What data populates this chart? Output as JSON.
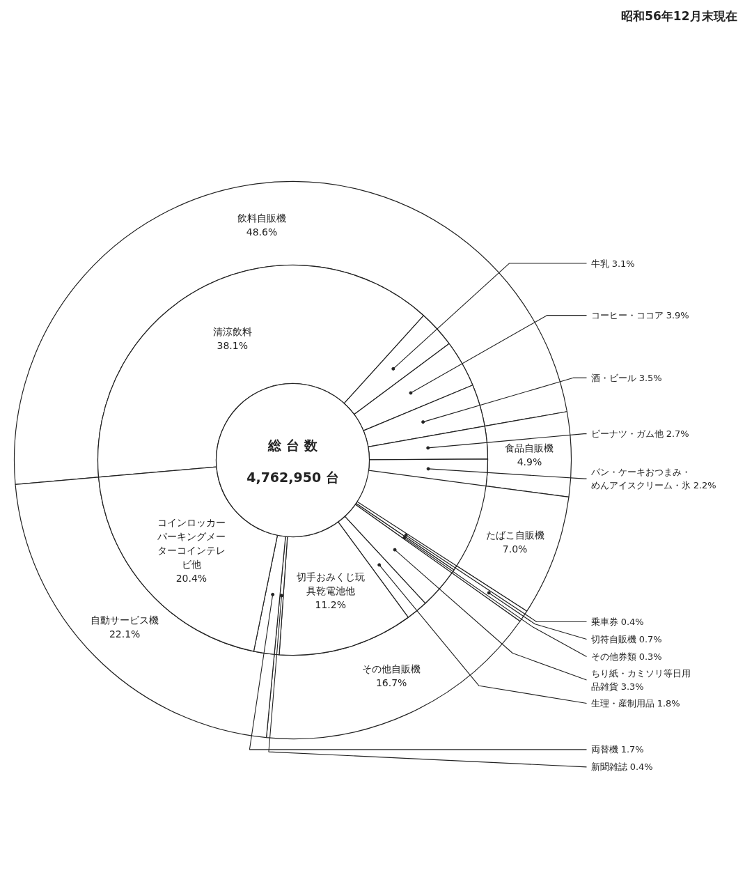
{
  "chart_data": [
    {
      "type": "donut",
      "subtitle": "昭和56年12月末現在",
      "categories": [
        "飲料自販機",
        "食品自販機",
        "たばこ自販機",
        "切符自販機",
        "その他自販機",
        "自動サービス機"
      ],
      "values": [
        48.6,
        4.9,
        7.0,
        0.7,
        16.7,
        22.1
      ],
      "value_labels": [
        "48.6%",
        "4.9%",
        "7.0%",
        "0.7%",
        "16.7%",
        "22.1%"
      ]
    },
    {
      "type": "donut",
      "annotations": [
        "総 台 数",
        "4,762,950 台"
      ],
      "categories": [
        "清涼飲料",
        "牛乳",
        "コーヒー・ココア",
        "酒・ビール",
        "ピーナツ・ガム他",
        "パン・ケーキおつまみ・めんアイスクリーム・氷",
        null,
        "乗車券",
        "その他券類",
        "ちり紙・カミソリ等日用品雑貨",
        "生理・産制用品",
        "切手おみくじ玩具乾電池他",
        "新聞雑誌",
        "両替機",
        "コインロッカーパーキングメーターコインテレビ他"
      ],
      "values": [
        38.1,
        3.1,
        3.9,
        3.5,
        2.7,
        2.2,
        null,
        0.4,
        0.3,
        3.3,
        1.8,
        11.2,
        0.4,
        1.7,
        20.4
      ],
      "value_labels": [
        "38.1%",
        "3.1%",
        "3.9%",
        "3.5%",
        "2.7%",
        "2.2%",
        null,
        "0.4%",
        "0.3%",
        "3.3%",
        "1.8%",
        "11.2%",
        "0.4%",
        "1.7%",
        "20.4%"
      ]
    }
  ]
}
